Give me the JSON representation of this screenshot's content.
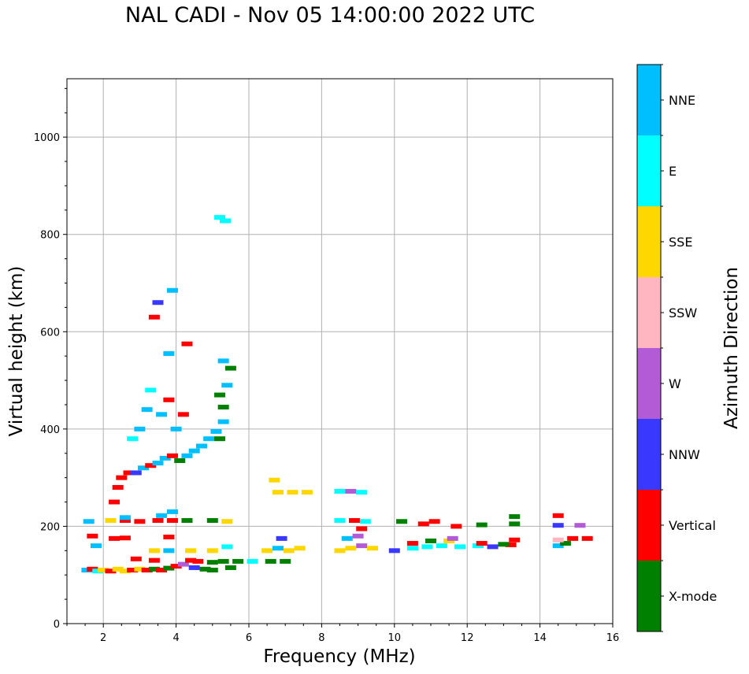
{
  "chart_data": {
    "type": "scatter",
    "title": "NAL CADI - Nov 05 14:00:00 2022 UTC",
    "xlabel": "Frequency (MHz)",
    "ylabel": "Virtual height (km)",
    "xlim": [
      1,
      16
    ],
    "ylim": [
      0,
      1120
    ],
    "xticks": [
      2,
      4,
      6,
      8,
      10,
      12,
      14,
      16
    ],
    "yticks": [
      0,
      200,
      400,
      600,
      800,
      1000
    ],
    "grid": true,
    "colorbar": {
      "label": "Azimuth Direction",
      "categories": [
        {
          "name": "X-mode",
          "color": "#008000"
        },
        {
          "name": "Vertical",
          "color": "#ff0000"
        },
        {
          "name": "NNW",
          "color": "#3838ff"
        },
        {
          "name": "W",
          "color": "#b35ad6"
        },
        {
          "name": "SSW",
          "color": "#ffb6c1"
        },
        {
          "name": "SSE",
          "color": "#ffd700"
        },
        {
          "name": "E",
          "color": "#00ffff"
        },
        {
          "name": "NNE",
          "color": "#00bfff"
        }
      ]
    },
    "points": [
      {
        "f": 1.55,
        "h": 110,
        "c": "NNE"
      },
      {
        "f": 1.7,
        "h": 112,
        "c": "Vertical"
      },
      {
        "f": 1.85,
        "h": 108,
        "c": "E"
      },
      {
        "f": 2.0,
        "h": 110,
        "c": "SSE"
      },
      {
        "f": 2.2,
        "h": 108,
        "c": "Vertical"
      },
      {
        "f": 2.4,
        "h": 112,
        "c": "SSE"
      },
      {
        "f": 2.6,
        "h": 108,
        "c": "SSE"
      },
      {
        "f": 2.8,
        "h": 110,
        "c": "Vertical"
      },
      {
        "f": 3.0,
        "h": 112,
        "c": "SSE"
      },
      {
        "f": 3.2,
        "h": 110,
        "c": "Vertical"
      },
      {
        "f": 3.4,
        "h": 112,
        "c": "X-mode"
      },
      {
        "f": 3.6,
        "h": 110,
        "c": "Vertical"
      },
      {
        "f": 3.8,
        "h": 114,
        "c": "X-mode"
      },
      {
        "f": 4.0,
        "h": 118,
        "c": "Vertical"
      },
      {
        "f": 4.2,
        "h": 122,
        "c": "W"
      },
      {
        "f": 4.5,
        "h": 115,
        "c": "NNW"
      },
      {
        "f": 4.8,
        "h": 112,
        "c": "X-mode"
      },
      {
        "f": 5.0,
        "h": 110,
        "c": "X-mode"
      },
      {
        "f": 5.5,
        "h": 115,
        "c": "X-mode"
      },
      {
        "f": 4.6,
        "h": 128,
        "c": "Vertical"
      },
      {
        "f": 5.0,
        "h": 126,
        "c": "X-mode"
      },
      {
        "f": 5.3,
        "h": 128,
        "c": "X-mode"
      },
      {
        "f": 5.7,
        "h": 128,
        "c": "X-mode"
      },
      {
        "f": 6.1,
        "h": 128,
        "c": "E"
      },
      {
        "f": 2.9,
        "h": 133,
        "c": "Vertical"
      },
      {
        "f": 3.4,
        "h": 130,
        "c": "Vertical"
      },
      {
        "f": 4.4,
        "h": 130,
        "c": "Vertical"
      },
      {
        "f": 3.4,
        "h": 150,
        "c": "SSE"
      },
      {
        "f": 3.8,
        "h": 150,
        "c": "NNE"
      },
      {
        "f": 4.4,
        "h": 150,
        "c": "SSE"
      },
      {
        "f": 5.0,
        "h": 150,
        "c": "SSE"
      },
      {
        "f": 5.4,
        "h": 158,
        "c": "E"
      },
      {
        "f": 1.8,
        "h": 160,
        "c": "NNE"
      },
      {
        "f": 1.7,
        "h": 180,
        "c": "Vertical"
      },
      {
        "f": 2.3,
        "h": 175,
        "c": "Vertical"
      },
      {
        "f": 2.6,
        "h": 176,
        "c": "Vertical"
      },
      {
        "f": 3.8,
        "h": 178,
        "c": "Vertical"
      },
      {
        "f": 3.0,
        "h": 210,
        "c": "Vertical"
      },
      {
        "f": 3.5,
        "h": 212,
        "c": "Vertical"
      },
      {
        "f": 3.9,
        "h": 212,
        "c": "Vertical"
      },
      {
        "f": 4.3,
        "h": 212,
        "c": "X-mode"
      },
      {
        "f": 5.0,
        "h": 212,
        "c": "X-mode"
      },
      {
        "f": 5.4,
        "h": 210,
        "c": "SSE"
      },
      {
        "f": 2.2,
        "h": 212,
        "c": "SSE"
      },
      {
        "f": 2.6,
        "h": 212,
        "c": "Vertical"
      },
      {
        "f": 1.6,
        "h": 210,
        "c": "NNE"
      },
      {
        "f": 3.6,
        "h": 222,
        "c": "NNE"
      },
      {
        "f": 3.9,
        "h": 230,
        "c": "NNE"
      },
      {
        "f": 2.6,
        "h": 218,
        "c": "NNE"
      },
      {
        "f": 2.3,
        "h": 250,
        "c": "Vertical"
      },
      {
        "f": 2.4,
        "h": 280,
        "c": "Vertical"
      },
      {
        "f": 2.5,
        "h": 300,
        "c": "Vertical"
      },
      {
        "f": 2.7,
        "h": 310,
        "c": "Vertical"
      },
      {
        "f": 2.9,
        "h": 310,
        "c": "NNW"
      },
      {
        "f": 3.1,
        "h": 320,
        "c": "NNE"
      },
      {
        "f": 3.3,
        "h": 325,
        "c": "Vertical"
      },
      {
        "f": 3.5,
        "h": 330,
        "c": "NNE"
      },
      {
        "f": 3.7,
        "h": 340,
        "c": "NNE"
      },
      {
        "f": 3.9,
        "h": 345,
        "c": "Vertical"
      },
      {
        "f": 4.1,
        "h": 335,
        "c": "X-mode"
      },
      {
        "f": 4.3,
        "h": 345,
        "c": "NNE"
      },
      {
        "f": 4.5,
        "h": 355,
        "c": "NNE"
      },
      {
        "f": 4.7,
        "h": 365,
        "c": "NNE"
      },
      {
        "f": 4.9,
        "h": 380,
        "c": "NNE"
      },
      {
        "f": 5.1,
        "h": 395,
        "c": "NNE"
      },
      {
        "f": 5.2,
        "h": 380,
        "c": "X-mode"
      },
      {
        "f": 5.3,
        "h": 415,
        "c": "NNE"
      },
      {
        "f": 5.3,
        "h": 445,
        "c": "X-mode"
      },
      {
        "f": 5.2,
        "h": 470,
        "c": "X-mode"
      },
      {
        "f": 5.4,
        "h": 490,
        "c": "NNE"
      },
      {
        "f": 2.8,
        "h": 380,
        "c": "E"
      },
      {
        "f": 3.0,
        "h": 400,
        "c": "NNE"
      },
      {
        "f": 3.2,
        "h": 440,
        "c": "NNE"
      },
      {
        "f": 3.3,
        "h": 480,
        "c": "E"
      },
      {
        "f": 3.6,
        "h": 430,
        "c": "NNE"
      },
      {
        "f": 3.8,
        "h": 460,
        "c": "Vertical"
      },
      {
        "f": 4.0,
        "h": 400,
        "c": "NNE"
      },
      {
        "f": 4.2,
        "h": 430,
        "c": "Vertical"
      },
      {
        "f": 4.3,
        "h": 575,
        "c": "Vertical"
      },
      {
        "f": 3.8,
        "h": 555,
        "c": "NNE"
      },
      {
        "f": 3.9,
        "h": 685,
        "c": "NNE"
      },
      {
        "f": 3.5,
        "h": 660,
        "c": "NNW"
      },
      {
        "f": 3.4,
        "h": 630,
        "c": "Vertical"
      },
      {
        "f": 5.3,
        "h": 540,
        "c": "NNE"
      },
      {
        "f": 5.5,
        "h": 525,
        "c": "X-mode"
      },
      {
        "f": 5.2,
        "h": 835,
        "c": "E"
      },
      {
        "f": 5.35,
        "h": 828,
        "c": "E"
      },
      {
        "f": 6.7,
        "h": 295,
        "c": "SSE"
      },
      {
        "f": 6.8,
        "h": 270,
        "c": "SSE"
      },
      {
        "f": 7.2,
        "h": 270,
        "c": "SSE"
      },
      {
        "f": 7.6,
        "h": 270,
        "c": "SSE"
      },
      {
        "f": 8.5,
        "h": 272,
        "c": "E"
      },
      {
        "f": 8.8,
        "h": 272,
        "c": "W"
      },
      {
        "f": 9.1,
        "h": 270,
        "c": "E"
      },
      {
        "f": 6.5,
        "h": 150,
        "c": "SSE"
      },
      {
        "f": 6.8,
        "h": 155,
        "c": "NNE"
      },
      {
        "f": 7.1,
        "h": 150,
        "c": "SSE"
      },
      {
        "f": 7.4,
        "h": 155,
        "c": "SSE"
      },
      {
        "f": 7.0,
        "h": 128,
        "c": "X-mode"
      },
      {
        "f": 6.6,
        "h": 128,
        "c": "X-mode"
      },
      {
        "f": 6.9,
        "h": 175,
        "c": "NNW"
      },
      {
        "f": 8.5,
        "h": 150,
        "c": "SSE"
      },
      {
        "f": 8.8,
        "h": 155,
        "c": "SSE"
      },
      {
        "f": 9.1,
        "h": 160,
        "c": "W"
      },
      {
        "f": 9.4,
        "h": 155,
        "c": "SSE"
      },
      {
        "f": 8.7,
        "h": 175,
        "c": "NNE"
      },
      {
        "f": 9.0,
        "h": 180,
        "c": "W"
      },
      {
        "f": 9.1,
        "h": 195,
        "c": "Vertical"
      },
      {
        "f": 8.5,
        "h": 212,
        "c": "E"
      },
      {
        "f": 8.9,
        "h": 212,
        "c": "Vertical"
      },
      {
        "f": 9.2,
        "h": 210,
        "c": "E"
      },
      {
        "f": 10.0,
        "h": 150,
        "c": "NNW"
      },
      {
        "f": 10.5,
        "h": 155,
        "c": "E"
      },
      {
        "f": 10.9,
        "h": 158,
        "c": "E"
      },
      {
        "f": 11.3,
        "h": 160,
        "c": "E"
      },
      {
        "f": 11.8,
        "h": 158,
        "c": "E"
      },
      {
        "f": 12.3,
        "h": 160,
        "c": "E"
      },
      {
        "f": 12.7,
        "h": 158,
        "c": "NNW"
      },
      {
        "f": 13.2,
        "h": 162,
        "c": "Vertical"
      },
      {
        "f": 10.5,
        "h": 165,
        "c": "Vertical"
      },
      {
        "f": 11.0,
        "h": 170,
        "c": "X-mode"
      },
      {
        "f": 11.5,
        "h": 170,
        "c": "SSE"
      },
      {
        "f": 11.6,
        "h": 175,
        "c": "W"
      },
      {
        "f": 12.4,
        "h": 165,
        "c": "Vertical"
      },
      {
        "f": 13.0,
        "h": 163,
        "c": "X-mode"
      },
      {
        "f": 13.3,
        "h": 172,
        "c": "Vertical"
      },
      {
        "f": 10.2,
        "h": 210,
        "c": "X-mode"
      },
      {
        "f": 10.8,
        "h": 205,
        "c": "Vertical"
      },
      {
        "f": 11.1,
        "h": 210,
        "c": "Vertical"
      },
      {
        "f": 11.7,
        "h": 200,
        "c": "Vertical"
      },
      {
        "f": 12.4,
        "h": 203,
        "c": "X-mode"
      },
      {
        "f": 13.3,
        "h": 220,
        "c": "X-mode"
      },
      {
        "f": 13.3,
        "h": 205,
        "c": "X-mode"
      },
      {
        "f": 14.5,
        "h": 222,
        "c": "Vertical"
      },
      {
        "f": 14.5,
        "h": 202,
        "c": "NNW"
      },
      {
        "f": 15.1,
        "h": 202,
        "c": "W"
      },
      {
        "f": 14.5,
        "h": 160,
        "c": "NNE"
      },
      {
        "f": 14.7,
        "h": 165,
        "c": "X-mode"
      },
      {
        "f": 14.9,
        "h": 175,
        "c": "Vertical"
      },
      {
        "f": 15.3,
        "h": 175,
        "c": "Vertical"
      },
      {
        "f": 14.5,
        "h": 172,
        "c": "SSW"
      }
    ]
  }
}
